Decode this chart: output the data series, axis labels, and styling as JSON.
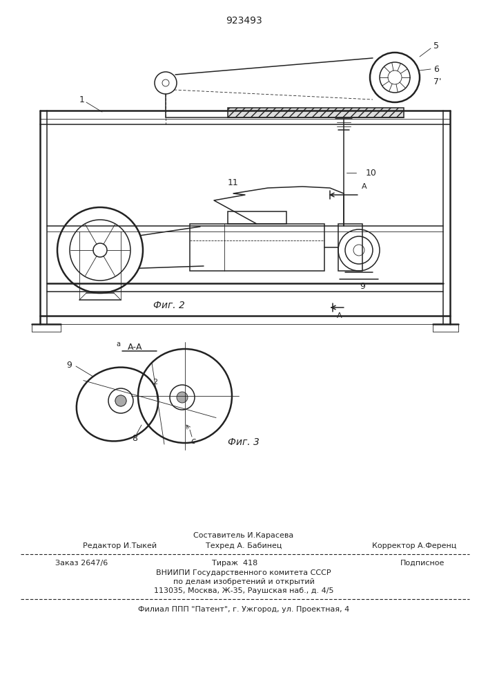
{
  "patent_number": "923493",
  "fig2_label": "Фиг. 2",
  "fig3_label": "Фиг. 3",
  "section_label": "А-А",
  "bg_color": "#ffffff",
  "line_color": "#222222",
  "editor_line": "Редактор И.Тыкей",
  "composer_line": "Составитель И.Карасева",
  "techred_line": "Техред А. Бабинец",
  "corrector_line": "Корректор А.Ференц",
  "order_line": "Заказ 2647/6",
  "tirazh_line": "Тираж  418",
  "podpisnoe_line": "Подписное",
  "vniip_line1": "ВНИИПИ Государственного комитета СССР",
  "vniip_line2": "по делам изобретений и открытий",
  "vniip_line3": "113035, Москва, Ж-35, Раушская наб., д. 4/5",
  "filial_line": "Филиал ППП \"Патент\", г. Ужгород, ул. Проектная, 4"
}
